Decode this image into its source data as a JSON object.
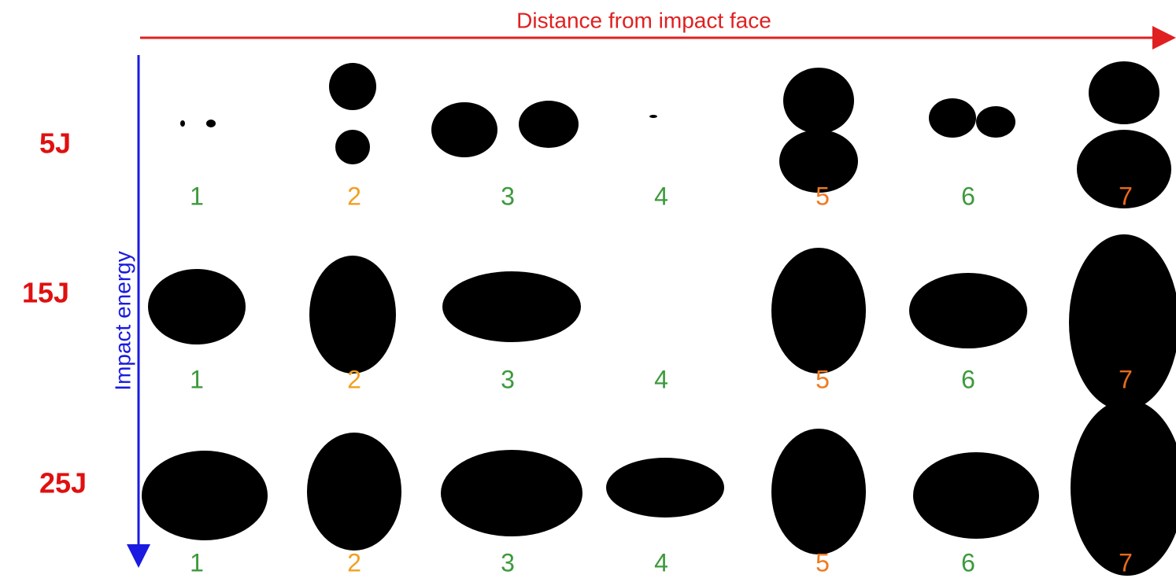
{
  "header": {
    "title": "Distance from impact face",
    "axis": "Impact energy"
  },
  "rows": [
    {
      "label": "5J",
      "panels": [
        {
          "label": "1",
          "color": "#3c9a3c"
        },
        {
          "label": "2",
          "color": "#f0a020"
        },
        {
          "label": "3",
          "color": "#3c9a3c"
        },
        {
          "label": "4",
          "color": "#3c9a3c"
        },
        {
          "label": "5",
          "color": "#f07a20"
        },
        {
          "label": "6",
          "color": "#3c9a3c"
        },
        {
          "label": "7",
          "color": "#e86a1a"
        }
      ]
    },
    {
      "label": "15J",
      "panels": [
        {
          "label": "1",
          "color": "#3c9a3c"
        },
        {
          "label": "2",
          "color": "#f0a020"
        },
        {
          "label": "3",
          "color": "#3c9a3c"
        },
        {
          "label": "4",
          "color": "#3c9a3c"
        },
        {
          "label": "5",
          "color": "#f07a20"
        },
        {
          "label": "6",
          "color": "#3c9a3c"
        },
        {
          "label": "7",
          "color": "#e86a1a"
        }
      ]
    },
    {
      "label": "25J",
      "panels": [
        {
          "label": "1",
          "color": "#3c9a3c"
        },
        {
          "label": "2",
          "color": "#f0a020"
        },
        {
          "label": "3",
          "color": "#3c9a3c"
        },
        {
          "label": "4",
          "color": "#3c9a3c"
        },
        {
          "label": "5",
          "color": "#f07a20"
        },
        {
          "label": "6",
          "color": "#3c9a3c"
        },
        {
          "label": "7",
          "color": "#e86a1a"
        }
      ]
    }
  ]
}
